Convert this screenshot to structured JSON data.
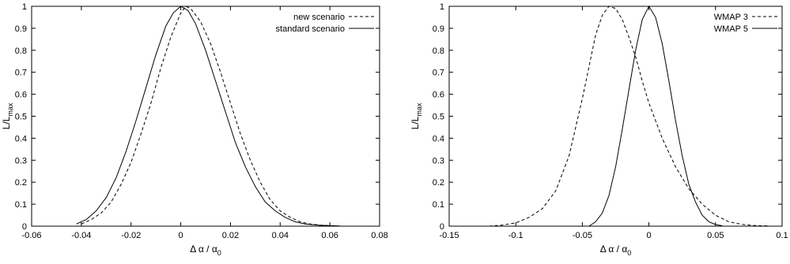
{
  "chart_data": [
    {
      "type": "line",
      "xlabel": "Δ α / α",
      "xlabel_sub": "0",
      "ylabel": "L/L",
      "ylabel_sub": "max",
      "xlim": [
        -0.06,
        0.08
      ],
      "ylim": [
        0,
        1
      ],
      "xticks": [
        -0.06,
        -0.04,
        -0.02,
        0,
        0.02,
        0.04,
        0.06,
        0.08
      ],
      "xtick_labels": [
        "-0.06",
        "-0.04",
        "-0.02",
        "0",
        "0.02",
        "0.04",
        "0.06",
        "0.08"
      ],
      "yticks": [
        0,
        0.1,
        0.2,
        0.3,
        0.4,
        0.5,
        0.6,
        0.7,
        0.8,
        0.9,
        1
      ],
      "ytick_labels": [
        "0",
        "0.1",
        "0.2",
        "0.3",
        "0.4",
        "0.5",
        "0.6",
        "0.7",
        "0.8",
        "0.9",
        "1"
      ],
      "grid": false,
      "legend_position": "top-right",
      "series": [
        {
          "name": "new scenario",
          "style": "dashed",
          "x": [
            -0.04,
            -0.036,
            -0.032,
            -0.028,
            -0.024,
            -0.02,
            -0.016,
            -0.012,
            -0.008,
            -0.004,
            0.0,
            0.002,
            0.004,
            0.008,
            0.012,
            0.016,
            0.02,
            0.024,
            0.028,
            0.032,
            0.036,
            0.04,
            0.044,
            0.048,
            0.052,
            0.056,
            0.06
          ],
          "y": [
            0.01,
            0.03,
            0.06,
            0.11,
            0.19,
            0.29,
            0.42,
            0.56,
            0.72,
            0.86,
            0.97,
            1.0,
            0.99,
            0.93,
            0.83,
            0.7,
            0.56,
            0.42,
            0.3,
            0.2,
            0.12,
            0.07,
            0.04,
            0.02,
            0.01,
            0.005,
            0.002
          ]
        },
        {
          "name": "standard scenario",
          "style": "solid",
          "x": [
            -0.042,
            -0.038,
            -0.034,
            -0.03,
            -0.026,
            -0.022,
            -0.018,
            -0.014,
            -0.01,
            -0.006,
            -0.003,
            0.0,
            0.003,
            0.006,
            0.01,
            0.014,
            0.018,
            0.022,
            0.026,
            0.03,
            0.034,
            0.038,
            0.042,
            0.046,
            0.05,
            0.056,
            0.064
          ],
          "y": [
            0.01,
            0.03,
            0.07,
            0.13,
            0.22,
            0.34,
            0.48,
            0.63,
            0.78,
            0.91,
            0.97,
            1.0,
            0.98,
            0.92,
            0.8,
            0.66,
            0.52,
            0.38,
            0.27,
            0.18,
            0.11,
            0.07,
            0.04,
            0.02,
            0.01,
            0.004,
            0.001
          ]
        }
      ]
    },
    {
      "type": "line",
      "xlabel": "Δ α / α",
      "xlabel_sub": "0",
      "ylabel": "L/L",
      "ylabel_sub": "max",
      "xlim": [
        -0.15,
        0.1
      ],
      "ylim": [
        0,
        1
      ],
      "xticks": [
        -0.15,
        -0.1,
        -0.05,
        0,
        0.05,
        0.1
      ],
      "xtick_labels": [
        "-0.15",
        "-0.1",
        "-0.05",
        "0",
        "0.05",
        "0.1"
      ],
      "yticks": [
        0,
        0.1,
        0.2,
        0.3,
        0.4,
        0.5,
        0.6,
        0.7,
        0.8,
        0.9,
        1
      ],
      "ytick_labels": [
        "0",
        "0.1",
        "0.2",
        "0.3",
        "0.4",
        "0.5",
        "0.6",
        "0.7",
        "0.8",
        "0.9",
        "1"
      ],
      "grid": false,
      "legend_position": "top-right",
      "series": [
        {
          "name": "WMAP 3",
          "style": "dashed",
          "x": [
            -0.12,
            -0.11,
            -0.1,
            -0.09,
            -0.08,
            -0.07,
            -0.06,
            -0.05,
            -0.04,
            -0.035,
            -0.03,
            -0.025,
            -0.02,
            -0.015,
            -0.01,
            -0.005,
            0.0,
            0.01,
            0.02,
            0.03,
            0.04,
            0.05,
            0.06,
            0.07,
            0.08,
            0.09
          ],
          "y": [
            0.0,
            0.005,
            0.015,
            0.04,
            0.08,
            0.16,
            0.32,
            0.58,
            0.87,
            0.96,
            1.0,
            0.99,
            0.94,
            0.86,
            0.77,
            0.66,
            0.56,
            0.4,
            0.27,
            0.17,
            0.1,
            0.05,
            0.02,
            0.008,
            0.003,
            0.001
          ]
        },
        {
          "name": "WMAP 5",
          "style": "solid",
          "x": [
            -0.045,
            -0.04,
            -0.035,
            -0.03,
            -0.025,
            -0.02,
            -0.015,
            -0.01,
            -0.005,
            0.0,
            0.005,
            0.01,
            0.015,
            0.02,
            0.025,
            0.03,
            0.035,
            0.04,
            0.045,
            0.05,
            0.055
          ],
          "y": [
            0.0,
            0.02,
            0.06,
            0.14,
            0.27,
            0.44,
            0.62,
            0.8,
            0.94,
            1.0,
            0.95,
            0.83,
            0.66,
            0.48,
            0.32,
            0.19,
            0.11,
            0.05,
            0.02,
            0.007,
            0.002
          ]
        }
      ]
    }
  ]
}
